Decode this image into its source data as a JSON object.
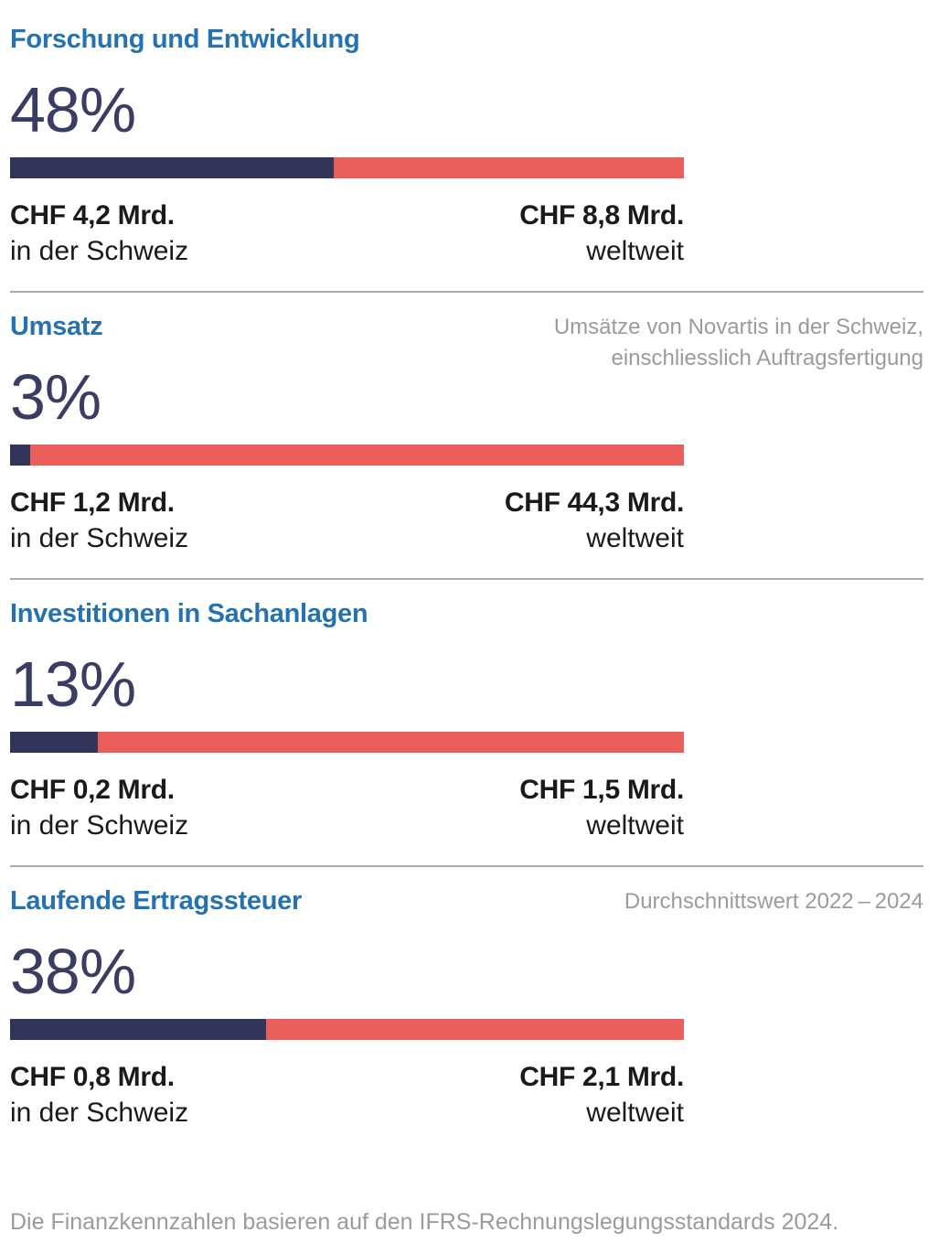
{
  "colors": {
    "heading_blue": "#2572b2",
    "bar_switzerland_navy": "#333459",
    "bar_worldwide_red": "#ea5f5c",
    "percent_navy": "#3a3d63",
    "text_dark": "#1a1a1a",
    "muted_gray": "#9b9b9b",
    "divider_gray": "#a9a9a9"
  },
  "sections": [
    {
      "title": "Forschung und Entwicklung",
      "percent": "48%",
      "swiss_share_pct": 48,
      "left_value": "CHF 4,2 Mrd.",
      "left_label": "in der Schweiz",
      "right_value": "CHF 8,8 Mrd.",
      "right_label": "weltweit"
    },
    {
      "title": "Umsatz",
      "note": "Umsätze von Novartis in der Schweiz,\neinschliesslich Auftragsfertigung",
      "percent": "3%",
      "swiss_share_pct": 3,
      "left_value": "CHF 1,2 Mrd.",
      "left_label": "in der Schweiz",
      "right_value": "CHF 44,3 Mrd.",
      "right_label": "weltweit"
    },
    {
      "title": "Investitionen in Sachanlagen",
      "percent": "13%",
      "swiss_share_pct": 13,
      "left_value": "CHF 0,2 Mrd.",
      "left_label": "in der Schweiz",
      "right_value": "CHF 1,5 Mrd.",
      "right_label": "weltweit"
    },
    {
      "title": "Laufende Ertragssteuer",
      "note": "Durchschnittswert 2022 – 2024",
      "percent": "38%",
      "swiss_share_pct": 38,
      "left_value": "CHF 0,8 Mrd.",
      "left_label": "in der Schweiz",
      "right_value": "CHF 2,1 Mrd.",
      "right_label": "weltweit"
    }
  ],
  "footer": "Die Finanzkennzahlen basieren auf den IFRS-Rechnungslegungsstandards 2024.",
  "chart_data": {
    "type": "bar",
    "subtype": "horizontal-stacked-share",
    "categories": [
      "Forschung und Entwicklung",
      "Umsatz",
      "Investitionen in Sachanlagen",
      "Laufende Ertragssteuer"
    ],
    "series": [
      {
        "name": "in der Schweiz",
        "color": "#333459",
        "values_chf_mrd": [
          4.2,
          1.2,
          0.2,
          0.8
        ]
      },
      {
        "name": "weltweit",
        "color": "#ea5f5c",
        "values_chf_mrd": [
          8.8,
          44.3,
          1.5,
          2.1
        ]
      }
    ],
    "swiss_share_percent": [
      48,
      3,
      13,
      38
    ],
    "annotations": [
      "",
      "Umsätze von Novartis in der Schweiz, einschliesslich Auftragsfertigung",
      "",
      "Durchschnittswert 2022 – 2024"
    ],
    "footnote": "Die Finanzkennzahlen basieren auf den IFRS-Rechnungslegungsstandards 2024.",
    "legend_position": "below-bars-as-labels",
    "grid": false
  }
}
